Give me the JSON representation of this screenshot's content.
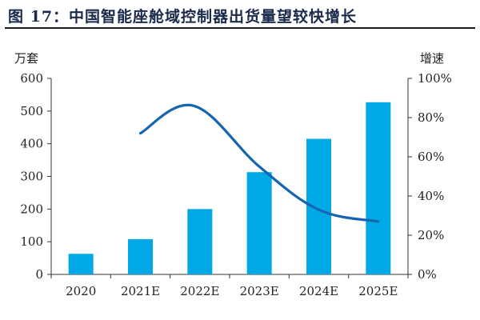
{
  "title": "图 17：中国智能座舱域控制器出货量望较快增长",
  "chart_data": {
    "type": "bar",
    "categories": [
      "2020",
      "2021E",
      "2022E",
      "2023E",
      "2024E",
      "2025E"
    ],
    "title": "图 17：中国智能座舱域控制器出货量望较快增长",
    "y_left": {
      "label": "万套",
      "min": 0,
      "max": 600,
      "ticks": [
        "0",
        "100",
        "200",
        "300",
        "400",
        "500",
        "600"
      ]
    },
    "y_right": {
      "label": "增速",
      "min": 0,
      "max": 100,
      "ticks": [
        "0%",
        "20%",
        "40%",
        "60%",
        "80%",
        "100%"
      ]
    },
    "series": [
      {
        "type": "bar",
        "axis": "left",
        "values": [
          63,
          108,
          200,
          313,
          415,
          527
        ],
        "color": "#00a9e6"
      },
      {
        "type": "line",
        "axis": "right",
        "x": [
          1,
          1.9,
          3,
          4,
          5
        ],
        "values": [
          72,
          86,
          55,
          33,
          27
        ],
        "color": "#1565b0"
      }
    ],
    "grid": false,
    "legend": "none"
  }
}
